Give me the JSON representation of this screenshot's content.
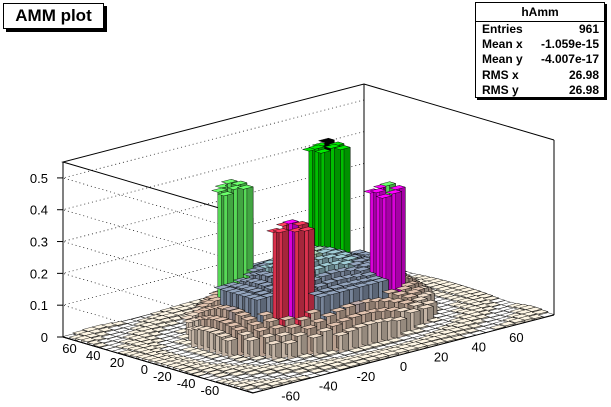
{
  "title": "AMM plot",
  "stats": {
    "name": "hAmm",
    "rows": [
      {
        "label": "Entries",
        "value": "961"
      },
      {
        "label": "Mean x",
        "value": "-1.059e-15"
      },
      {
        "label": "Mean y",
        "value": "-4.007e-17"
      },
      {
        "label": "RMS x",
        "value": "26.98"
      },
      {
        "label": "RMS y",
        "value": "26.98"
      }
    ]
  },
  "chart_data": {
    "type": "lego3d",
    "title": "AMM plot",
    "xlabel": "",
    "ylabel": "",
    "zlabel": "",
    "x_range": [
      -80,
      80
    ],
    "y_range": [
      -80,
      80
    ],
    "zlim": [
      0,
      0.55
    ],
    "x_ticks": [
      -60,
      -40,
      -20,
      0,
      20,
      40,
      60
    ],
    "y_ticks": [
      -60,
      -40,
      -20,
      0,
      20,
      40,
      60
    ],
    "z_ticks": [
      0,
      0.1,
      0.2,
      0.3,
      0.4,
      0.5
    ],
    "z_tick_labels": [
      "0",
      "0.1",
      "0.2",
      "0.3",
      "0.4",
      "0.5"
    ],
    "x_tick_labels": [
      "-60",
      "-40",
      "-20",
      "0",
      "20",
      "40",
      "60"
    ],
    "y_tick_labels": [
      "-60",
      "-40",
      "-20",
      "0",
      "20",
      "40",
      "60"
    ],
    "grid": true,
    "bins_x": 31,
    "bins_y": 31,
    "peaks": [
      {
        "x": -25,
        "y": 25,
        "z": 0.47
      },
      {
        "x": 25,
        "y": 25,
        "z": 0.52
      },
      {
        "x": -25,
        "y": -25,
        "z": 0.4
      },
      {
        "x": 25,
        "y": -25,
        "z": 0.44
      }
    ],
    "plateau": {
      "radius": 40,
      "z": 0.2
    },
    "skirt": {
      "radius": 55,
      "z": 0.05
    },
    "colors": {
      "floor": "#ffffff",
      "axes": "#000000",
      "levels": [
        "#f2ead9",
        "#e6d4c2",
        "#d8bba8",
        "#b9a7a6",
        "#8d9db5",
        "#9ac4cd",
        "#a7d1b4",
        "#f2ecb6",
        "#ff9aa2",
        "#ff3a5a",
        "#ff00ff",
        "#66ff66",
        "#00e000",
        "#000000"
      ]
    }
  }
}
